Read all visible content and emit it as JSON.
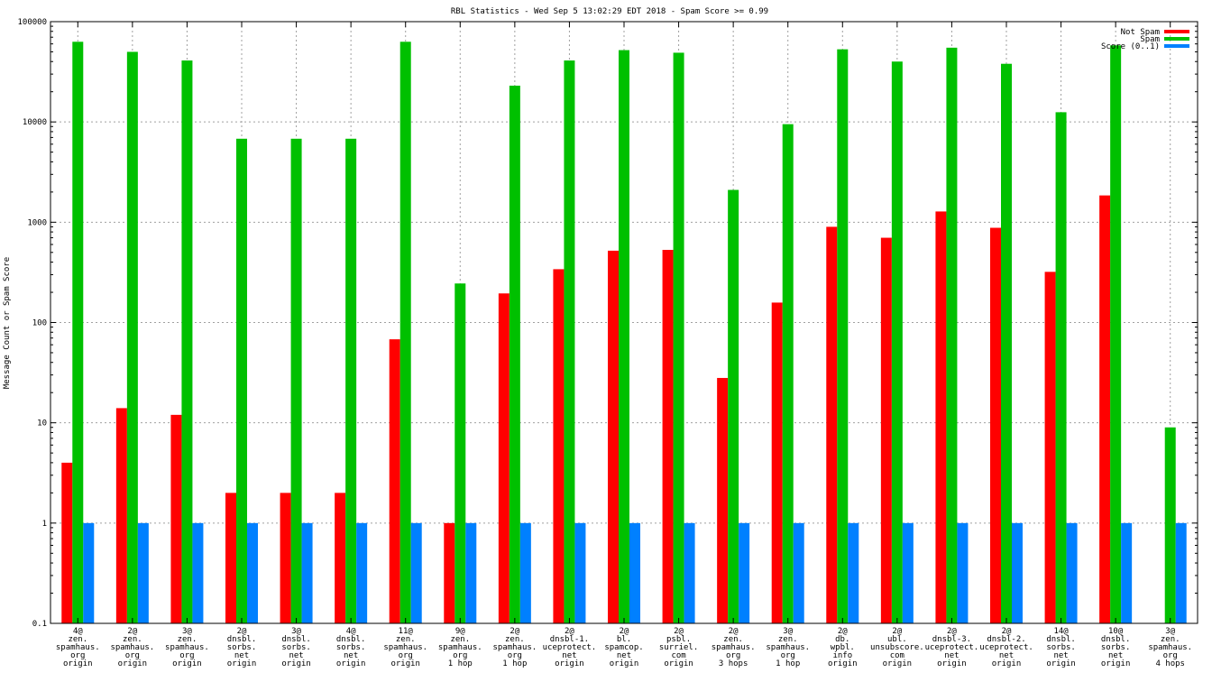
{
  "chart_data": {
    "type": "bar",
    "title": "RBL Statistics - Wed Sep  5 13:02:29 EDT 2018 - Spam Score >= 0.99",
    "xlabel": "",
    "ylabel": "Message Count or Spam Score",
    "yscale": "log",
    "ylim": [
      0.1,
      100000
    ],
    "yticks": [
      "0.1",
      "1",
      "10",
      "100",
      "1000",
      "10000",
      "100000"
    ],
    "grid": true,
    "legend_position": "top-right",
    "categories": [
      [
        "4@",
        "zen.",
        "spamhaus.",
        "org",
        "origin"
      ],
      [
        "2@",
        "zen.",
        "spamhaus.",
        "org",
        "origin"
      ],
      [
        "3@",
        "zen.",
        "spamhaus.",
        "org",
        "origin"
      ],
      [
        "2@",
        "dnsbl.",
        "sorbs.",
        "net",
        "origin"
      ],
      [
        "3@",
        "dnsbl.",
        "sorbs.",
        "net",
        "origin"
      ],
      [
        "4@",
        "dnsbl.",
        "sorbs.",
        "net",
        "origin"
      ],
      [
        "11@",
        "zen.",
        "spamhaus.",
        "org",
        "origin"
      ],
      [
        "9@",
        "zen.",
        "spamhaus.",
        "org",
        "1 hop"
      ],
      [
        "2@",
        "zen.",
        "spamhaus.",
        "org",
        "1 hop"
      ],
      [
        "2@",
        "dnsbl-1.",
        "uceprotect.",
        "net",
        "origin"
      ],
      [
        "2@",
        "bl.",
        "spamcop.",
        "net",
        "origin"
      ],
      [
        "2@",
        "psbl.",
        "surriel.",
        "com",
        "origin"
      ],
      [
        "2@",
        "zen.",
        "spamhaus.",
        "org",
        "3 hops"
      ],
      [
        "3@",
        "zen.",
        "spamhaus.",
        "org",
        "1 hop"
      ],
      [
        "2@",
        "db.",
        "wpbl.",
        "info",
        "origin"
      ],
      [
        "2@",
        "ubl.",
        "unsubscore.",
        "com",
        "origin"
      ],
      [
        "2@",
        "dnsbl-3.",
        "uceprotect.",
        "net",
        "origin"
      ],
      [
        "2@",
        "dnsbl-2.",
        "uceprotect.",
        "net",
        "origin"
      ],
      [
        "14@",
        "dnsbl.",
        "sorbs.",
        "net",
        "origin"
      ],
      [
        "10@",
        "dnsbl.",
        "sorbs.",
        "net",
        "origin"
      ],
      [
        "3@",
        "zen.",
        "spamhaus.",
        "org",
        "4 hops"
      ]
    ],
    "series": [
      {
        "name": "Not Spam",
        "color": "#ff0000",
        "values": [
          4,
          14,
          12,
          2,
          2,
          2,
          68,
          1,
          195,
          340,
          520,
          530,
          28,
          158,
          900,
          700,
          1280,
          880,
          320,
          1850,
          null
        ]
      },
      {
        "name": "Spam",
        "color": "#00c000",
        "values": [
          63000,
          50000,
          41000,
          6800,
          6800,
          6800,
          63000,
          245,
          23000,
          41000,
          52000,
          49000,
          2100,
          9500,
          53000,
          40000,
          55000,
          38000,
          12500,
          58000,
          9
        ]
      },
      {
        "name": "Score (0..1)",
        "color": "#0080ff",
        "values": [
          1,
          1,
          1,
          1,
          1,
          1,
          1,
          1,
          1,
          1,
          1,
          1,
          1,
          1,
          1,
          1,
          1,
          1,
          1,
          1,
          1
        ]
      }
    ]
  }
}
